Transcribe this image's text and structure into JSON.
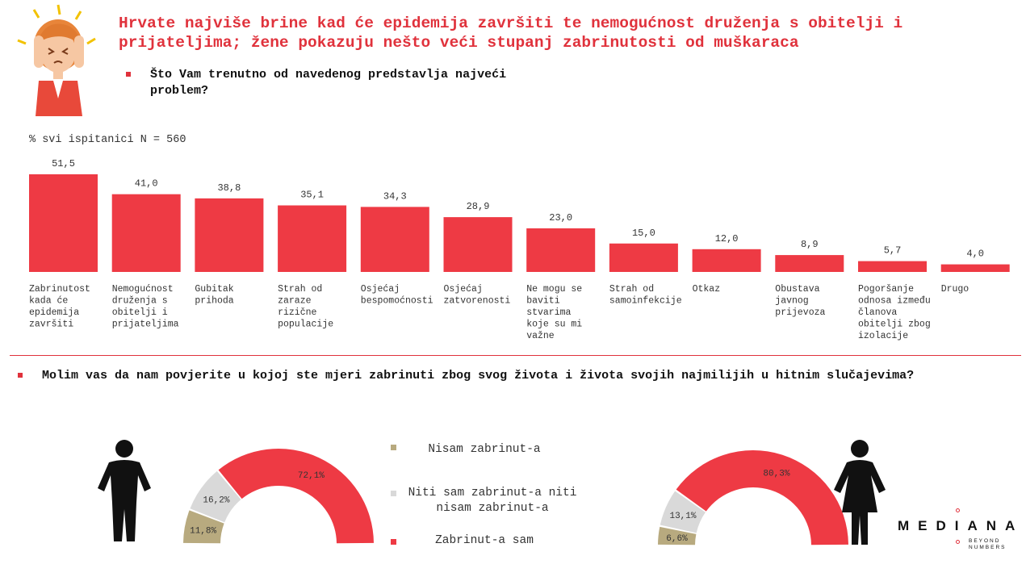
{
  "header": {
    "title": "Hrvate najviše brine kad će epidemija završiti te nemogućnost druženja s obitelji i\nprijateljima; žene pokazuju nešto veći stupanj zabrinutosti od muškaraca",
    "question1": "Što Vam trenutno od navedenog predstavlja najveći problem?",
    "base": "% svi ispitanici N = 560"
  },
  "question2": "Molim vas da nam povjerite u kojoj ste mjeri zabrinuti zbog svog života i života svojih najmilijih u hitnim slučajevima?",
  "brand": {
    "name": "MEDIANA",
    "tagline": "BEYOND\nNUMBERS"
  },
  "colors": {
    "accent": "#e0323c",
    "bar": "#ee3a44",
    "not_worried": "#b8aa7f",
    "neutral": "#d9d9d9",
    "worried": "#ee3a44"
  },
  "chart_data": [
    {
      "type": "bar",
      "title": "",
      "xlabel": "",
      "ylabel": "",
      "categories": [
        "Zabrinutost kada će epidemija završiti",
        "Nemogućnost druženja s obitelji i prijateljima",
        "Gubitak prihoda",
        "Strah od zaraze rizične populacije",
        "Osjećaj bespomoćnosti",
        "Osjećaj zatvorenosti",
        "Ne mogu se baviti stvarima koje su mi važne",
        "Strah od samoinfekcije",
        "Otkaz",
        "Obustava javnog prijevoza",
        "Pogoršanje odnosa između članova obitelji zbog izolacije",
        "Drugo"
      ],
      "values": [
        51.5,
        41.0,
        38.8,
        35.1,
        34.3,
        28.9,
        23.0,
        15.0,
        12.0,
        8.9,
        5.7,
        4.0
      ],
      "value_labels": [
        "51,5",
        "41,0",
        "38,8",
        "35,1",
        "34,3",
        "28,9",
        "23,0",
        "15,0",
        "12,0",
        "8,9",
        "5,7",
        "4,0"
      ],
      "category_lines": [
        [
          "Zabrinutost",
          "kada će",
          "epidemija",
          "završiti"
        ],
        [
          "Nemogućnost",
          "druženja s",
          "obitelji i",
          "prijateljima"
        ],
        [
          "Gubitak",
          "prihoda"
        ],
        [
          "Strah od",
          "zaraze",
          "rizične",
          "populacije"
        ],
        [
          "Osjećaj",
          "bespomoćnosti"
        ],
        [
          "Osjećaj",
          "zatvorenosti"
        ],
        [
          "Ne mogu se",
          "baviti",
          "stvarima",
          "koje su mi",
          "važne"
        ],
        [
          "Strah od",
          "samoinfekcije"
        ],
        [
          "Otkaz"
        ],
        [
          "Obustava",
          "javnog",
          "prijevoza"
        ],
        [
          "Pogoršanje",
          "odnosa između",
          "članova",
          "obitelji zbog",
          "izolacije"
        ],
        [
          "Drugo"
        ]
      ],
      "ylim": [
        0,
        55
      ],
      "grid": false,
      "legend": "none"
    },
    {
      "type": "pie",
      "variant": "half-donut",
      "group": "men",
      "icon": "male-figure-icon",
      "title": "",
      "slices": [
        {
          "name": "Nisam zabrinut-a",
          "value": 11.8,
          "label": "11,8%",
          "color": "#b8aa7f"
        },
        {
          "name": "Niti sam zabrinut-a niti nisam zabrinut-a",
          "value": 16.2,
          "label": "16,2%",
          "color": "#d9d9d9"
        },
        {
          "name": "Zabrinut-a sam",
          "value": 72.1,
          "label": "72,1%",
          "color": "#ee3a44"
        }
      ]
    },
    {
      "type": "pie",
      "variant": "half-donut",
      "group": "women",
      "icon": "female-figure-icon",
      "title": "",
      "slices": [
        {
          "name": "Nisam zabrinut-a",
          "value": 6.6,
          "label": "6,6%",
          "color": "#b8aa7f"
        },
        {
          "name": "Niti sam zabrinut-a niti nisam zabrinut-a",
          "value": 13.1,
          "label": "13,1%",
          "color": "#d9d9d9"
        },
        {
          "name": "Zabrinut-a sam",
          "value": 80.3,
          "label": "80,3%",
          "color": "#ee3a44"
        }
      ]
    }
  ],
  "legend": {
    "items": [
      {
        "label": "Nisam zabrinut-a",
        "color": "#b8aa7f"
      },
      {
        "label": "Niti sam zabrinut-a niti\nnisam zabrinut-a",
        "color": "#d9d9d9"
      },
      {
        "label": "Zabrinut-a sam",
        "color": "#ee3a44"
      }
    ]
  }
}
